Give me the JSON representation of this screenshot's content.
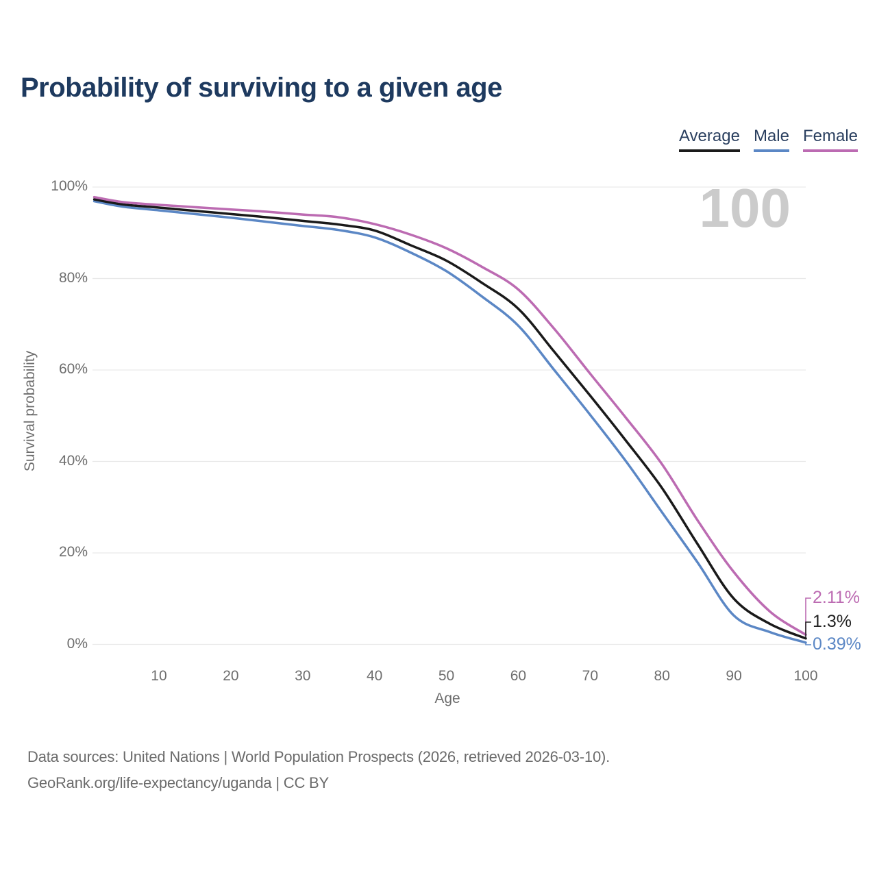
{
  "title": "Probability of surviving to a given age",
  "legend": {
    "items": [
      {
        "label": "Average",
        "color": "#1a1a1a"
      },
      {
        "label": "Male",
        "color": "#5b87c5"
      },
      {
        "label": "Female",
        "color": "#bc6bb2"
      }
    ]
  },
  "watermark": "100",
  "chart_data": {
    "type": "line",
    "title": "Probability of surviving to a given age",
    "xlabel": "Age",
    "ylabel": "Survival probability",
    "xlim": [
      1,
      100
    ],
    "ylim": [
      0,
      100
    ],
    "x_ticks": [
      10,
      20,
      30,
      40,
      50,
      60,
      70,
      80,
      90,
      100
    ],
    "y_ticks": [
      0,
      20,
      40,
      60,
      80,
      100
    ],
    "y_tick_suffix": "%",
    "grid": "horizontal",
    "legend_position": "top-right",
    "x": [
      1,
      5,
      10,
      15,
      20,
      25,
      30,
      35,
      40,
      45,
      50,
      55,
      60,
      65,
      70,
      75,
      80,
      85,
      90,
      95,
      100
    ],
    "series": [
      {
        "name": "Average",
        "color": "#1a1a1a",
        "values": [
          97.3,
          96.2,
          95.5,
          94.8,
          94.1,
          93.4,
          92.6,
          91.8,
          90.5,
          87.3,
          83.9,
          79.0,
          73.4,
          64.0,
          54.4,
          44.5,
          34.2,
          21.8,
          10.0,
          4.5,
          1.3
        ]
      },
      {
        "name": "Male",
        "color": "#5b87c5",
        "values": [
          96.9,
          95.7,
          94.9,
          94.1,
          93.3,
          92.4,
          91.5,
          90.6,
          89.0,
          85.7,
          81.6,
          76.0,
          69.7,
          60.0,
          50.2,
          40.0,
          28.9,
          17.8,
          6.3,
          2.7,
          0.39
        ]
      },
      {
        "name": "Female",
        "color": "#bc6bb2",
        "values": [
          97.8,
          96.7,
          96.1,
          95.6,
          95.1,
          94.6,
          94.0,
          93.4,
          91.9,
          89.6,
          86.6,
          82.5,
          77.6,
          69.0,
          59.2,
          49.5,
          39.4,
          27.0,
          15.8,
          7.2,
          2.11
        ]
      }
    ],
    "end_labels": [
      {
        "series": "Female",
        "text": "2.11%",
        "value": 2.11,
        "color": "#bc6bb2"
      },
      {
        "series": "Average",
        "text": "1.3%",
        "value": 1.3,
        "color": "#222222"
      },
      {
        "series": "Male",
        "text": "0.39%",
        "value": 0.39,
        "color": "#5b87c5"
      }
    ]
  },
  "source": {
    "line1": "Data sources: United Nations | World Population Prospects (2026, retrieved 2026-03-10).",
    "line2": "GeoRank.org/life-expectancy/uganda | CC BY"
  }
}
